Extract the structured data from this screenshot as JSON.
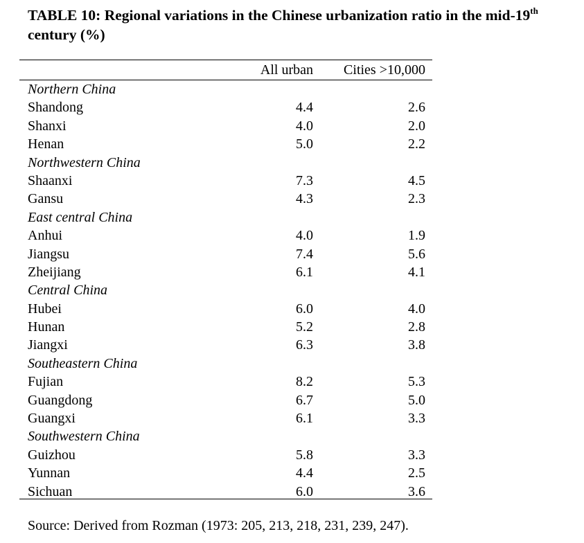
{
  "title": {
    "text": "TABLE 10: Regional variations in the Chinese urbanization ratio in the mid-19",
    "superscript": "th",
    "continuation": "century (%)"
  },
  "columns": {
    "all_urban": "All urban",
    "cities": "Cities >10,000"
  },
  "rows": [
    {
      "type": "group",
      "label": "Northern China"
    },
    {
      "type": "data",
      "label": "Shandong",
      "all_urban": "4.4",
      "cities": "2.6"
    },
    {
      "type": "data",
      "label": "Shanxi",
      "all_urban": "4.0",
      "cities": "2.0"
    },
    {
      "type": "data",
      "label": "Henan",
      "all_urban": "5.0",
      "cities": "2.2"
    },
    {
      "type": "group",
      "label": "Northwestern China"
    },
    {
      "type": "data",
      "label": "Shaanxi",
      "all_urban": "7.3",
      "cities": "4.5"
    },
    {
      "type": "data",
      "label": "Gansu",
      "all_urban": "4.3",
      "cities": "2.3"
    },
    {
      "type": "group",
      "label": "East central China"
    },
    {
      "type": "data",
      "label": "Anhui",
      "all_urban": "4.0",
      "cities": "1.9"
    },
    {
      "type": "data",
      "label": "Jiangsu",
      "all_urban": "7.4",
      "cities": "5.6"
    },
    {
      "type": "data",
      "label": "Zheijiang",
      "all_urban": "6.1",
      "cities": "4.1"
    },
    {
      "type": "group",
      "label": "Central China"
    },
    {
      "type": "data",
      "label": "Hubei",
      "all_urban": "6.0",
      "cities": "4.0"
    },
    {
      "type": "data",
      "label": "Hunan",
      "all_urban": "5.2",
      "cities": "2.8"
    },
    {
      "type": "data",
      "label": "Jiangxi",
      "all_urban": "6.3",
      "cities": "3.8"
    },
    {
      "type": "group",
      "label": "Southeastern China"
    },
    {
      "type": "data",
      "label": "Fujian",
      "all_urban": "8.2",
      "cities": "5.3"
    },
    {
      "type": "data",
      "label": "Guangdong",
      "all_urban": "6.7",
      "cities": "5.0"
    },
    {
      "type": "data",
      "label": "Guangxi",
      "all_urban": "6.1",
      "cities": "3.3"
    },
    {
      "type": "group",
      "label": "Southwestern China"
    },
    {
      "type": "data",
      "label": "Guizhou",
      "all_urban": "5.8",
      "cities": "3.3"
    },
    {
      "type": "data",
      "label": "Yunnan",
      "all_urban": "4.4",
      "cities": "2.5"
    },
    {
      "type": "data",
      "label": "Sichuan",
      "all_urban": "6.0",
      "cities": "3.6"
    }
  ],
  "source": "Source: Derived from Rozman (1973: 205, 213, 218, 231, 239, 247)."
}
